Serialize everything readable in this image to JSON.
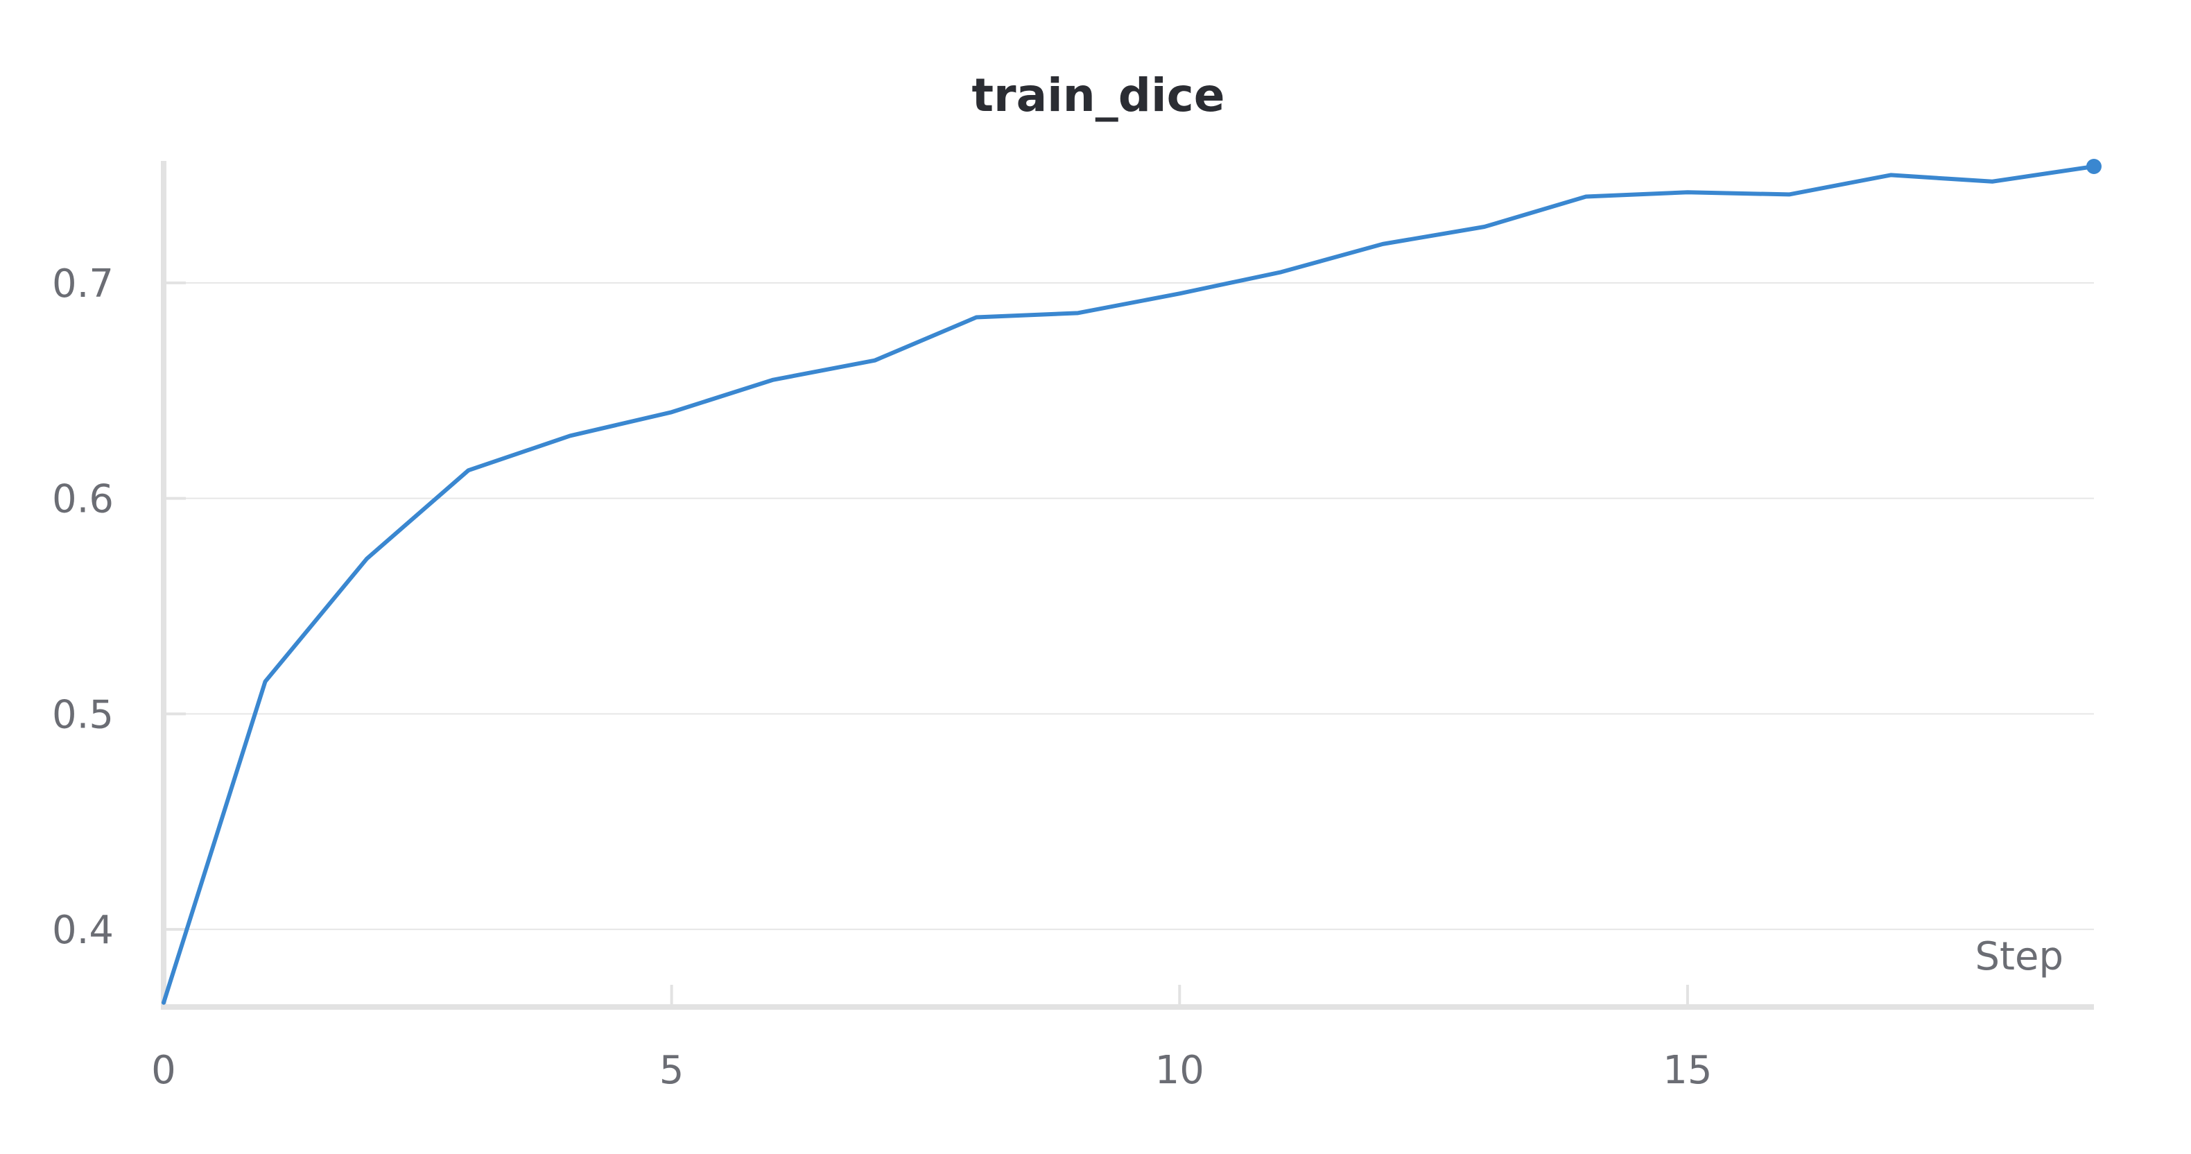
{
  "chart_data": {
    "type": "line",
    "title": "train_dice",
    "xlabel": "Step",
    "ylabel": "",
    "xlim": [
      0,
      19
    ],
    "ylim": [
      0.364,
      0.754
    ],
    "x_ticks": [
      0,
      5,
      10,
      15
    ],
    "y_ticks": [
      0.4,
      0.5,
      0.6,
      0.7
    ],
    "x_tick_labels": [
      "0",
      "5",
      "10",
      "15"
    ],
    "y_tick_labels": [
      "0.4",
      "0.5",
      "0.6",
      "0.7"
    ],
    "grid": true,
    "legend": "none",
    "x": [
      0,
      1,
      2,
      3,
      4,
      5,
      6,
      7,
      8,
      9,
      10,
      11,
      12,
      13,
      14,
      15,
      16,
      17,
      18,
      19
    ],
    "series": [
      {
        "color": "#3a87d0",
        "values": [
          0.366,
          0.515,
          0.572,
          0.613,
          0.629,
          0.64,
          0.655,
          0.664,
          0.684,
          0.686,
          0.695,
          0.705,
          0.718,
          0.726,
          0.74,
          0.742,
          0.741,
          0.75,
          0.747,
          0.754
        ]
      }
    ]
  }
}
